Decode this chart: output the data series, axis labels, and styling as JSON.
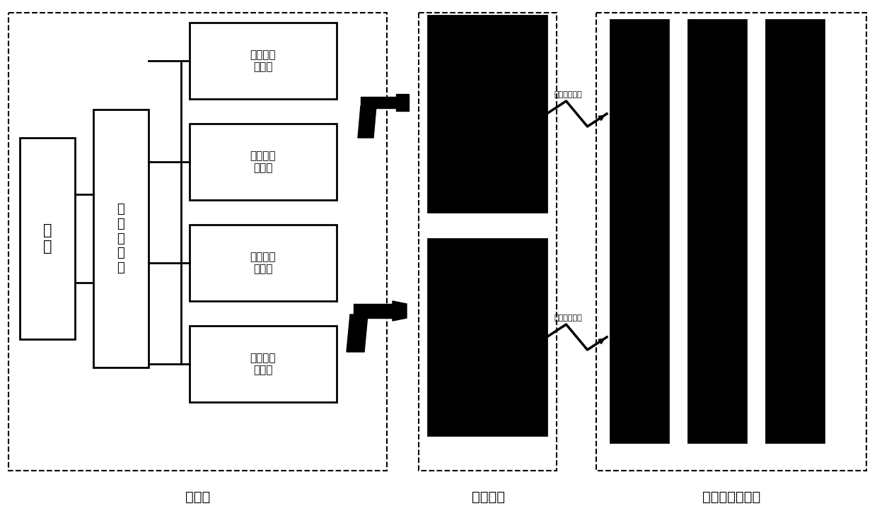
{
  "bg_color": "#ffffff",
  "labels": {
    "grid": "电\n网",
    "transformer": "配\n电\n变\n压\n器",
    "box1": "单枪直流\n充电机",
    "box2": "双枪直流\n充电机",
    "box3": "单相交流\n充电桩",
    "box4": "三相交流\n充电桩",
    "section1": "充电站",
    "section2": "检测装置",
    "section3": "云检测服务系统",
    "wireless1": "加密无线传输",
    "wireless2": "加密无线传输"
  },
  "font_size_box": 11,
  "font_size_label": 14
}
